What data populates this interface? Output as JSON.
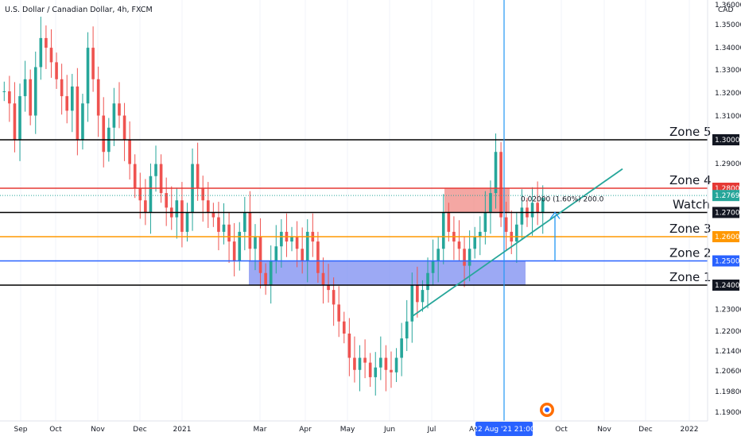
{
  "header": {
    "symbol_title": "U.S. Dollar / Canadian Dollar, 4h, FXCM",
    "currency": "CAD"
  },
  "chart_data": {
    "type": "candlestick",
    "title": "U.S. Dollar / Canadian Dollar, 4h, FXCM",
    "price_axis": {
      "currency": "CAD",
      "ticks": [
        "1.36000",
        "1.35000",
        "1.34000",
        "1.33000",
        "1.32000",
        "1.31000",
        "1.29000",
        "1.22000",
        "1.21400",
        "1.20600",
        "1.19800",
        "1.19000"
      ]
    },
    "time_axis": {
      "ticks": [
        "Sep",
        "Oct",
        "Nov",
        "Dec",
        "2021",
        "Mar",
        "Apr",
        "May",
        "Jun",
        "Jul",
        "Au",
        "Oct",
        "Nov",
        "Dec",
        "2022"
      ],
      "crosshair_label": "22 Aug '21  21:00"
    },
    "levels": [
      {
        "name": "Zone 5",
        "price": 1.3,
        "label": "1.30000",
        "color": "#000000"
      },
      {
        "name": "Zone 4",
        "price": 1.28,
        "label": "1.28000",
        "color": "#e53935"
      },
      {
        "name": "Watch",
        "price": 1.27,
        "label": "1.27000",
        "color": "#000000"
      },
      {
        "name": "Zone 3",
        "price": 1.26,
        "label": "1.26000",
        "color": "#ff9800"
      },
      {
        "name": "Zone 2",
        "price": 1.25,
        "label": "1.25000",
        "color": "#2962ff"
      },
      {
        "name": "Zone 1",
        "price": 1.24,
        "label": "1.24000",
        "color": "#000000"
      }
    ],
    "current_price": {
      "price": 1.27699,
      "label": "1.27699",
      "color": "#26a69a"
    },
    "extra_ticks": [
      {
        "price": 1.23,
        "label": "1.23000"
      }
    ],
    "measure": {
      "text": "0.02000 (1.60%) 200.0",
      "from": 1.25,
      "to": 1.27
    },
    "zones_boxes": [
      {
        "name": "support-box",
        "from": 1.24,
        "to": 1.25,
        "color": "#7b8cf0"
      },
      {
        "name": "resistance-box",
        "from": 1.27,
        "to": 1.28,
        "color": "#f08a84"
      }
    ],
    "trendline": {
      "from": {
        "month": "Jul",
        "price": 1.227
      },
      "to": {
        "month": "Nov",
        "price": 1.288
      },
      "color": "#26a69a"
    },
    "close_series": [
      1.32,
      1.315,
      1.3,
      1.318,
      1.325,
      1.31,
      1.33,
      1.342,
      1.338,
      1.332,
      1.325,
      1.318,
      1.312,
      1.322,
      1.3,
      1.315,
      1.338,
      1.325,
      1.31,
      1.295,
      1.305,
      1.315,
      1.31,
      1.3,
      1.29,
      1.28,
      1.275,
      1.27,
      1.285,
      1.29,
      1.278,
      1.272,
      1.268,
      1.275,
      1.262,
      1.27,
      1.29,
      1.28,
      1.275,
      1.27,
      1.268,
      1.262,
      1.265,
      1.258,
      1.25,
      1.262,
      1.27,
      1.255,
      1.26,
      1.245,
      1.24,
      1.25,
      1.256,
      1.262,
      1.258,
      1.26,
      1.255,
      1.25,
      1.262,
      1.258,
      1.245,
      1.24,
      1.238,
      1.232,
      1.225,
      1.22,
      1.21,
      1.205,
      1.21,
      1.208,
      1.202,
      1.206,
      1.21,
      1.205,
      1.204,
      1.21,
      1.218,
      1.225,
      1.24,
      1.233,
      1.238,
      1.245,
      1.25,
      1.255,
      1.27,
      1.262,
      1.258,
      1.255,
      1.248,
      1.255,
      1.26,
      1.262,
      1.27,
      1.278,
      1.295,
      1.268,
      1.262,
      1.258,
      1.265,
      1.272,
      1.268,
      1.274,
      1.27,
      1.276
    ]
  }
}
